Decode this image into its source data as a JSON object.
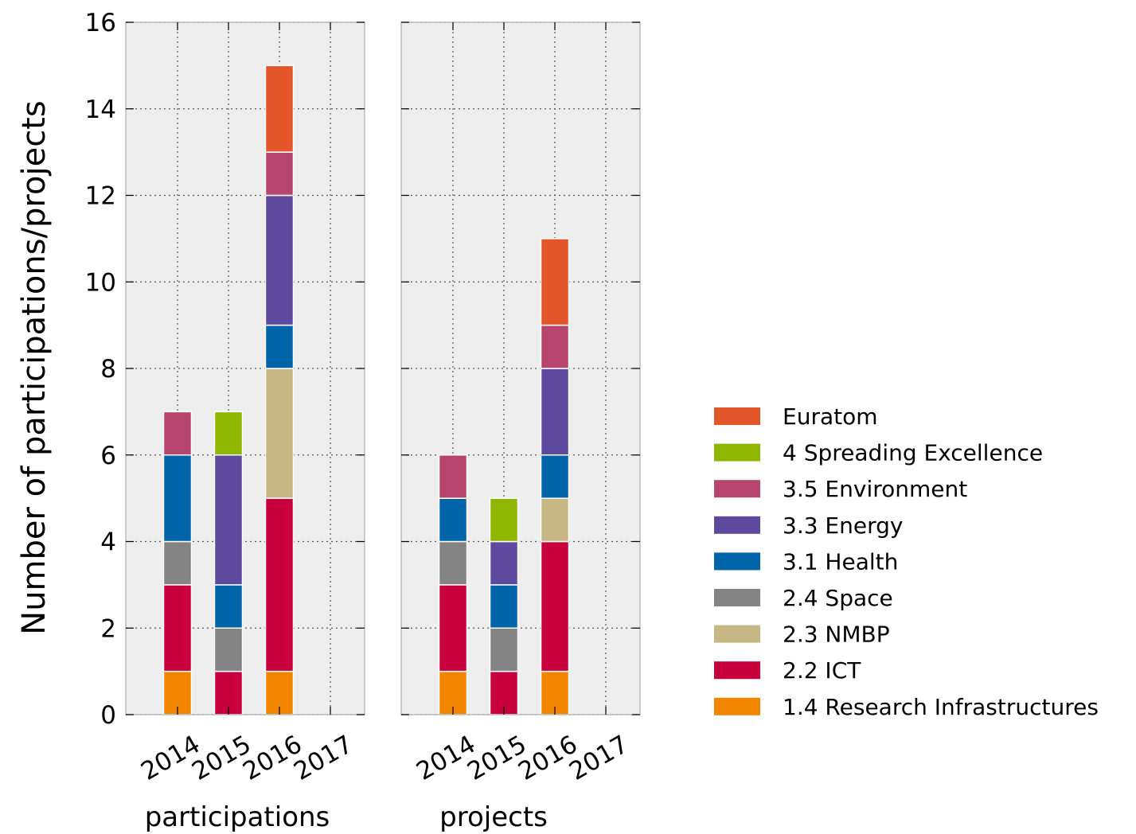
{
  "chart_data": {
    "type": "bar",
    "stacked": true,
    "ylabel": "Number of participations/projects",
    "ylim": [
      0,
      16
    ],
    "yticks": [
      0,
      2,
      4,
      6,
      8,
      10,
      12,
      14,
      16
    ],
    "grid": true,
    "legend_position": "right",
    "categories": [
      "2014",
      "2015",
      "2016",
      "2017"
    ],
    "series": [
      {
        "name": "1.4 Research Infrastructures",
        "color": "#f28500"
      },
      {
        "name": "2.2 ICT",
        "color": "#c8003c"
      },
      {
        "name": "2.3 NMBP",
        "color": "#c7b784"
      },
      {
        "name": "2.4 Space",
        "color": "#848484"
      },
      {
        "name": "3.1 Health",
        "color": "#0065a8"
      },
      {
        "name": "3.3 Energy",
        "color": "#5d4a9e"
      },
      {
        "name": "3.5 Environment",
        "color": "#b8456e"
      },
      {
        "name": "4 Spreading Excellence",
        "color": "#8fb600"
      },
      {
        "name": "Euratom",
        "color": "#e2562a"
      }
    ],
    "panels": [
      {
        "xlabel": "participations",
        "values": [
          [
            1,
            2,
            0,
            1,
            2,
            0,
            1,
            0,
            0
          ],
          [
            0,
            1,
            0,
            1,
            1,
            3,
            0,
            1,
            0
          ],
          [
            1,
            4,
            3,
            0,
            1,
            3,
            1,
            0,
            2
          ],
          [
            0,
            0,
            0,
            0,
            0,
            0,
            0,
            0,
            0
          ]
        ]
      },
      {
        "xlabel": "projects",
        "values": [
          [
            1,
            2,
            0,
            1,
            1,
            0,
            1,
            0,
            0
          ],
          [
            0,
            1,
            0,
            1,
            1,
            1,
            0,
            1,
            0
          ],
          [
            1,
            3,
            1,
            0,
            1,
            2,
            1,
            0,
            2
          ],
          [
            0,
            0,
            0,
            0,
            0,
            0,
            0,
            0,
            0
          ]
        ]
      }
    ]
  }
}
